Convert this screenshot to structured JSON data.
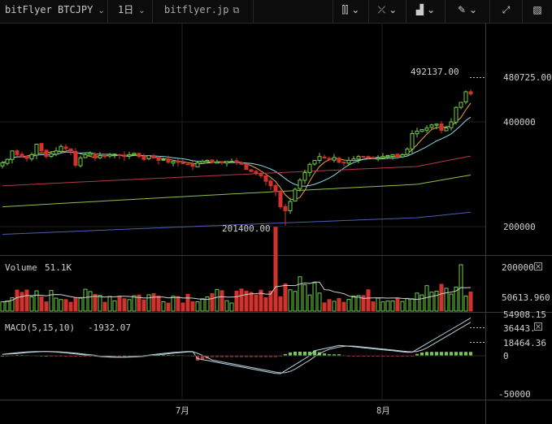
{
  "toolbar": {
    "symbol": "bitFlyer BTCJPY",
    "interval": "1日",
    "site": "bitflyer.jp",
    "icons": [
      "candles-icon",
      "compare-icon",
      "indicators-icon",
      "draw-icon",
      "fullscreen-icon",
      "snapshot-icon"
    ]
  },
  "price_axis": {
    "last_price": "480725.00",
    "high_label": "492137.00",
    "low_label": "201400.00",
    "ticks": [
      "400000",
      "200000"
    ]
  },
  "volume_pane": {
    "title": "Volume",
    "value": "51.1K",
    "ticks": [
      "200000",
      "50613.960"
    ]
  },
  "macd_pane": {
    "title": "MACD(5,15,10)",
    "value": "-1932.07",
    "ticks": [
      "54908.15",
      "36443.",
      "18464.36",
      "0",
      "-50000"
    ]
  },
  "time_axis": {
    "ticks": [
      "7月",
      "8月"
    ]
  },
  "colors": {
    "up": "#6fcf4a",
    "down": "#d2322d",
    "ma_short": "#e5a640",
    "ma_mid": "#8fd4e8",
    "ma_long1": "#b33a4a",
    "ma_long2": "#8fbf4a",
    "ma_long3": "#4b5fb0",
    "macd_line": "#a8d8ea",
    "signal_line": "#c9c9c9"
  },
  "chart_data": {
    "type": "candlestick",
    "title": "bitFlyer BTCJPY",
    "ylim": [
      180000,
      520000
    ],
    "x_ticks": [
      "7月",
      "8月"
    ],
    "last_close": 480725.0,
    "period_high": 492137.0,
    "period_low": 201400.0,
    "volume_last": "51.1K",
    "macd_last": -1932.07
  }
}
